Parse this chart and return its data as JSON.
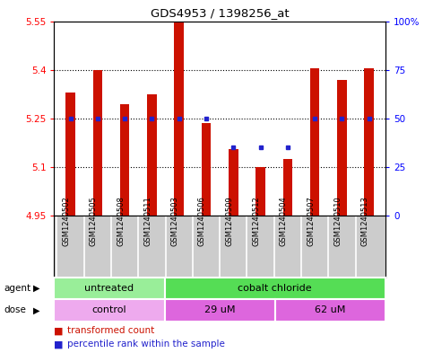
{
  "title": "GDS4953 / 1398256_at",
  "samples": [
    "GSM1240502",
    "GSM1240505",
    "GSM1240508",
    "GSM1240511",
    "GSM1240503",
    "GSM1240506",
    "GSM1240509",
    "GSM1240512",
    "GSM1240504",
    "GSM1240507",
    "GSM1240510",
    "GSM1240513"
  ],
  "bar_values": [
    5.33,
    5.4,
    5.295,
    5.325,
    5.545,
    5.235,
    5.155,
    5.1,
    5.125,
    5.405,
    5.37,
    5.405
  ],
  "bar_base": 4.95,
  "blue_dot_show": [
    true,
    true,
    true,
    true,
    true,
    true,
    true,
    true,
    true,
    true,
    true,
    true
  ],
  "blue_dot_percentile": [
    50,
    50,
    50,
    50,
    50,
    50,
    35,
    35,
    35,
    50,
    50,
    50
  ],
  "ylim_left": [
    4.95,
    5.55
  ],
  "ylim_right": [
    0,
    100
  ],
  "yticks_left": [
    4.95,
    5.1,
    5.25,
    5.4,
    5.55
  ],
  "yticks_left_labels": [
    "4.95",
    "5.1",
    "5.25",
    "5.4",
    "5.55"
  ],
  "yticks_right": [
    0,
    25,
    50,
    75,
    100
  ],
  "yticks_right_labels": [
    "0",
    "25",
    "50",
    "75",
    "100%"
  ],
  "gridlines": [
    5.1,
    5.25,
    5.4
  ],
  "bar_color": "#cc1100",
  "dot_color": "#2222cc",
  "agent_groups": [
    {
      "label": "untreated",
      "start": 0,
      "end": 4,
      "color": "#99ee99"
    },
    {
      "label": "cobalt chloride",
      "start": 4,
      "end": 12,
      "color": "#55dd55"
    }
  ],
  "dose_groups": [
    {
      "label": "control",
      "start": 0,
      "end": 4,
      "color": "#eeaaee"
    },
    {
      "label": "29 uM",
      "start": 4,
      "end": 8,
      "color": "#dd66dd"
    },
    {
      "label": "62 uM",
      "start": 8,
      "end": 12,
      "color": "#dd66dd"
    }
  ],
  "legend_items": [
    {
      "label": "transformed count",
      "color": "#cc1100"
    },
    {
      "label": "percentile rank within the sample",
      "color": "#2222cc"
    }
  ],
  "agent_label": "agent",
  "dose_label": "dose",
  "bg_color": "#ffffff",
  "sample_bg_color": "#cccccc",
  "bar_width": 0.35
}
